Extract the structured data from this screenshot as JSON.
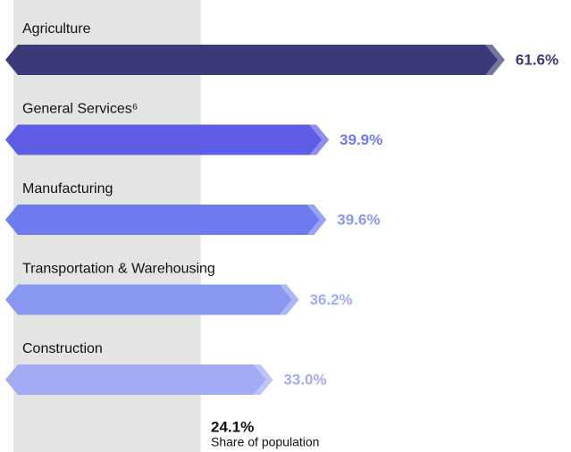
{
  "chart_data": {
    "type": "bar",
    "orientation": "horizontal",
    "categories": [
      "Agriculture",
      "General Services⁶",
      "Manufacturing",
      "Transportation & Warehousing",
      "Construction"
    ],
    "values": [
      61.6,
      39.9,
      39.6,
      36.2,
      33.0
    ],
    "value_labels": [
      "61.6%",
      "39.9%",
      "39.6%",
      "36.2%",
      "33.0%"
    ],
    "colors": [
      "#3b3a78",
      "#5f5de6",
      "#6e7bef",
      "#8898f0",
      "#a2abf4"
    ],
    "xlim": [
      0,
      68
    ],
    "reference": {
      "value": 24.1,
      "value_label": "24.1%",
      "label": "Share of population",
      "color": "#e3e5e3"
    }
  }
}
